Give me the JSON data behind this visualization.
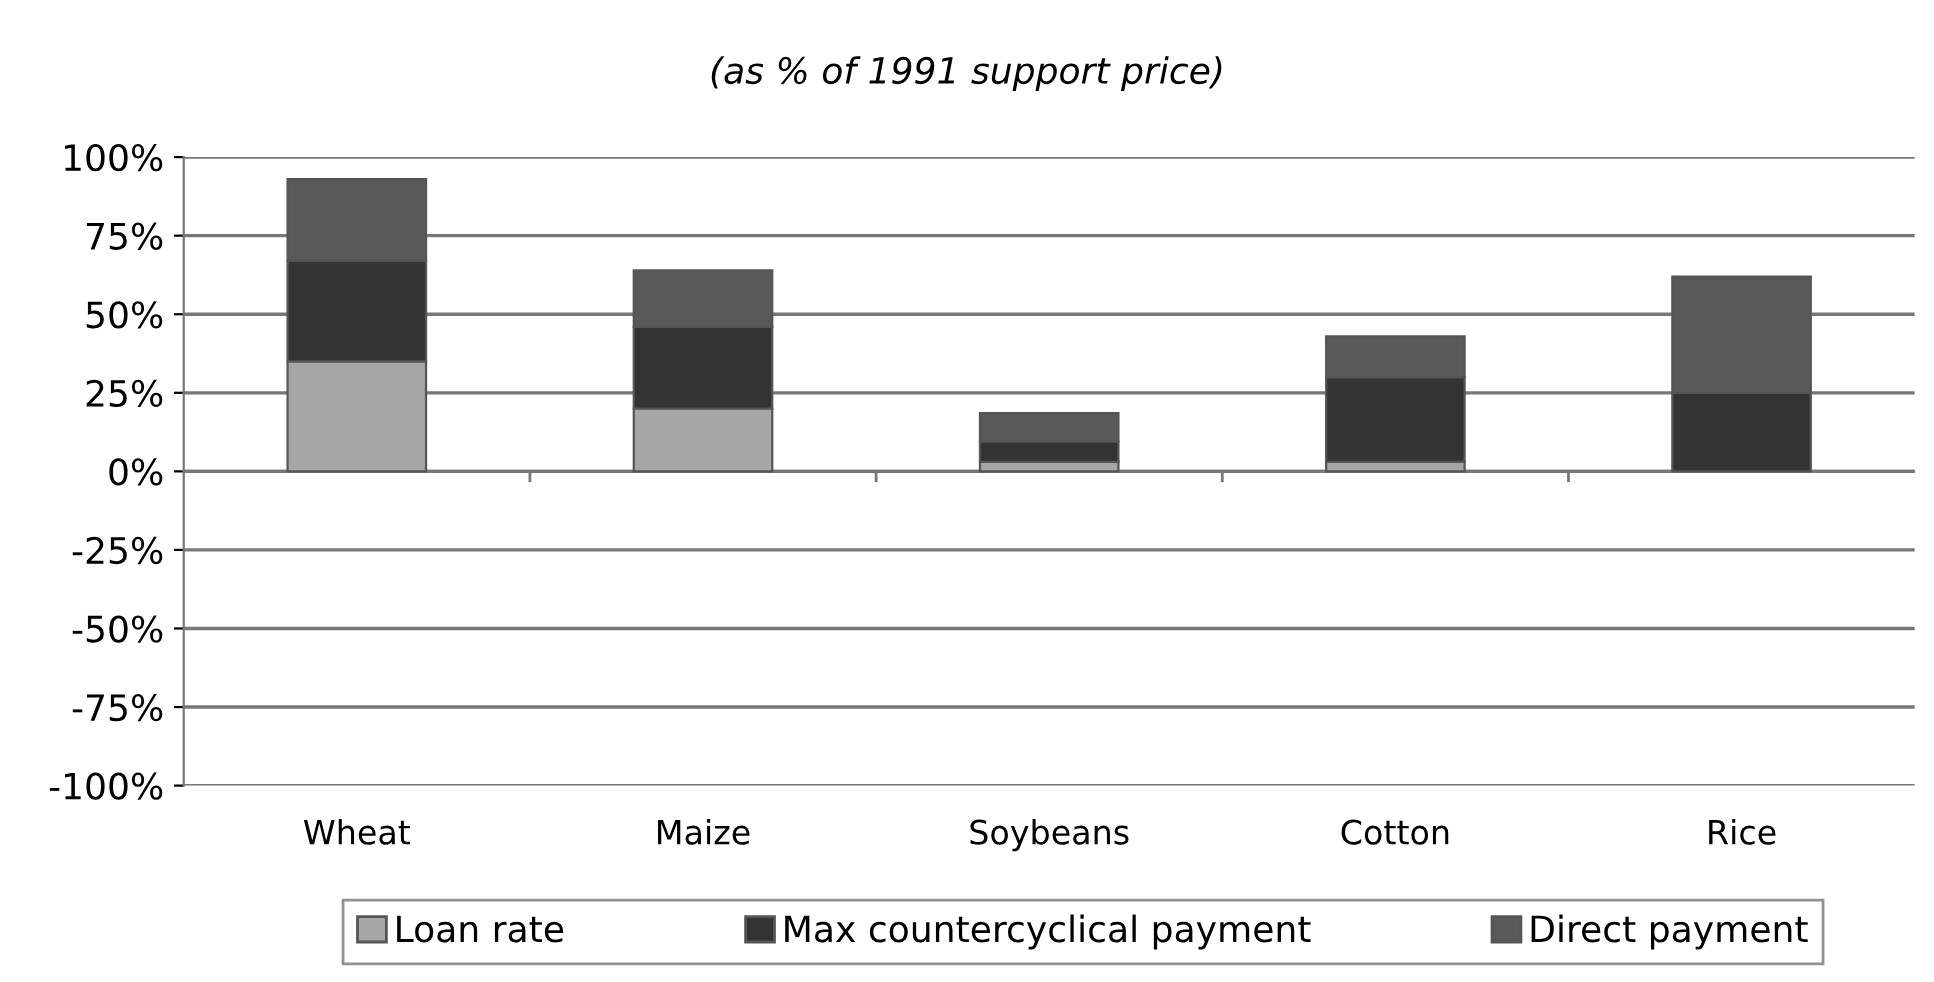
{
  "chart_data": {
    "type": "bar",
    "stacked": true,
    "title": "(as % of 1991 support price)",
    "categories": [
      "Wheat",
      "Maize",
      "Soybeans",
      "Cotton",
      "Rice"
    ],
    "series": [
      {
        "name": "Loan rate",
        "color": "#a6a6a6",
        "values": [
          35,
          20,
          3,
          3,
          0
        ]
      },
      {
        "name": "Max countercyclical payment",
        "color": "#333333",
        "values": [
          32,
          26,
          6.5,
          27,
          25
        ]
      },
      {
        "name": "Direct payment",
        "color": "#595959",
        "values": [
          26,
          18,
          9,
          13,
          37
        ]
      }
    ],
    "ylim": [
      -100,
      100
    ],
    "yticks": [
      {
        "value": -100,
        "label": "-100%"
      },
      {
        "value": -75,
        "label": "-75%"
      },
      {
        "value": -50,
        "label": "-50%"
      },
      {
        "value": -25,
        "label": "-25%"
      },
      {
        "value": 0,
        "label": "0%"
      },
      {
        "value": 25,
        "label": "25%"
      },
      {
        "value": 50,
        "label": "50%"
      },
      {
        "value": 75,
        "label": "75%"
      },
      {
        "value": 100,
        "label": "100%"
      }
    ],
    "grid": "y",
    "legend": "bottom"
  }
}
